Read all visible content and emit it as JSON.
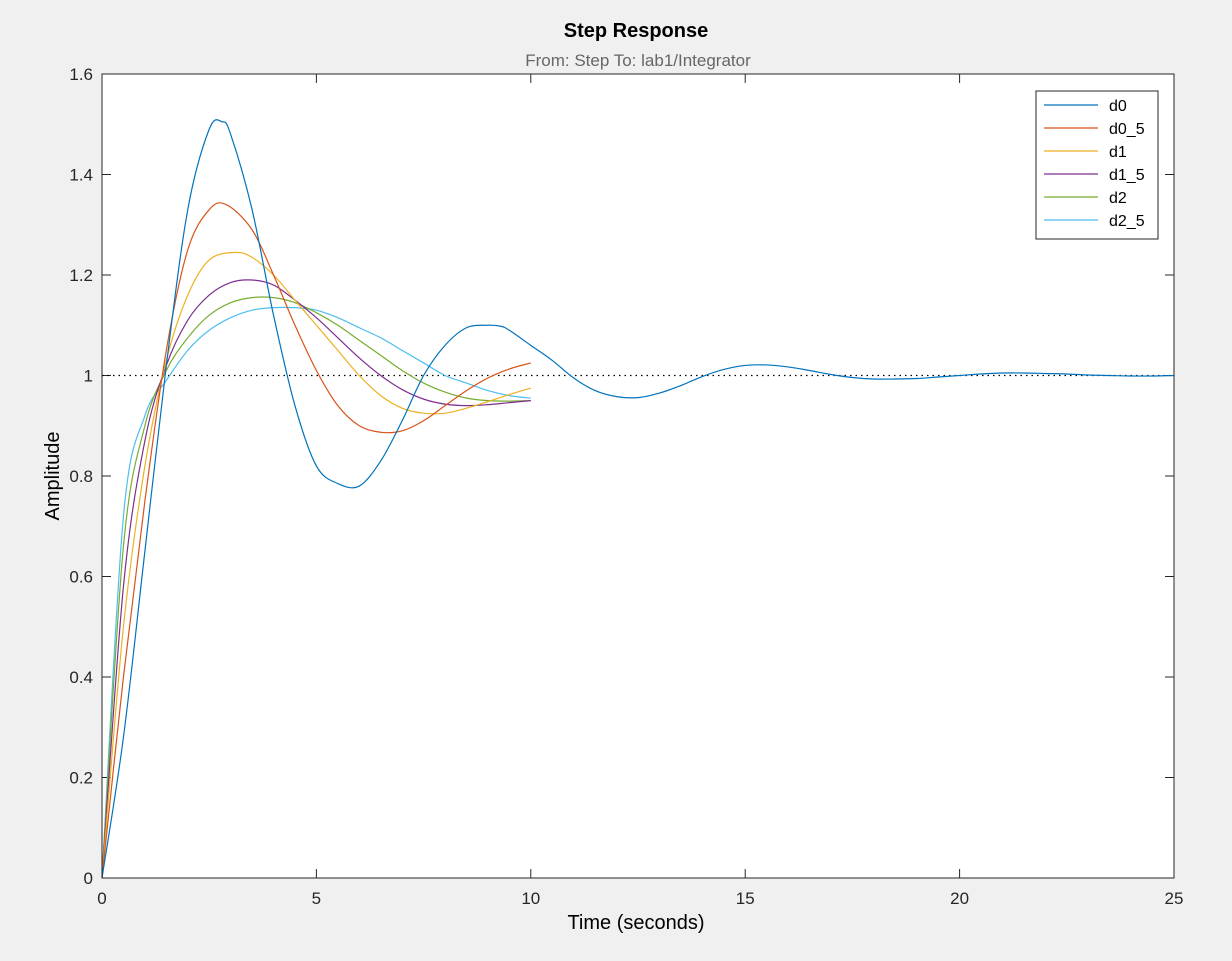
{
  "chart_data": {
    "type": "line",
    "title": "Step Response",
    "subtitle": "From: Step  To: lab1/Integrator",
    "xlabel": "Time (seconds)",
    "ylabel": "Amplitude",
    "xlim": [
      0,
      25
    ],
    "ylim": [
      0,
      1.6
    ],
    "xticks": [
      0,
      5,
      10,
      15,
      20,
      25
    ],
    "xtick_labels": [
      "0",
      "5",
      "10",
      "15",
      "20",
      "25"
    ],
    "yticks": [
      0,
      0.2,
      0.4,
      0.6,
      0.8,
      1,
      1.2,
      1.4,
      1.6
    ],
    "ytick_labels": [
      "0",
      "0.2",
      "0.4",
      "0.6",
      "0.8",
      "1",
      "1.2",
      "1.4",
      "1.6"
    ],
    "grid": false,
    "legend_position": "top-right",
    "reference_line": {
      "y": 1,
      "style": "dotted",
      "color": "#000000"
    },
    "series": [
      {
        "name": "d0",
        "color": "#0072bd",
        "x": [
          0,
          0.5,
          1,
          1.5,
          2,
          2.5,
          2.8,
          3,
          3.5,
          4,
          4.5,
          5,
          5.5,
          6,
          6.5,
          7,
          7.5,
          8,
          8.5,
          9,
          9.3,
          9.5,
          10,
          10.5,
          11,
          11.5,
          12,
          12.5,
          13,
          13.5,
          14,
          14.5,
          15,
          15.5,
          16,
          16.5,
          17,
          17.5,
          18,
          18.5,
          19,
          19.5,
          20,
          20.5,
          21,
          21.5,
          22,
          22.5,
          23,
          23.5,
          24,
          24.5,
          25
        ],
        "y": [
          0,
          0.28,
          0.65,
          1.02,
          1.33,
          1.49,
          1.505,
          1.48,
          1.33,
          1.12,
          0.94,
          0.82,
          0.785,
          0.78,
          0.83,
          0.91,
          1.0,
          1.06,
          1.095,
          1.1,
          1.098,
          1.09,
          1.06,
          1.03,
          0.995,
          0.97,
          0.958,
          0.956,
          0.965,
          0.98,
          0.998,
          1.012,
          1.02,
          1.021,
          1.017,
          1.01,
          1.002,
          0.996,
          0.993,
          0.993,
          0.994,
          0.997,
          1.0,
          1.003,
          1.005,
          1.005,
          1.004,
          1.003,
          1.001,
          1.0,
          0.999,
          0.999,
          1.0
        ]
      },
      {
        "name": "d0_5",
        "color": "#d95319",
        "x": [
          0,
          0.5,
          1,
          1.5,
          2,
          2.5,
          2.9,
          3.5,
          4,
          4.5,
          5,
          5.5,
          6,
          6.5,
          7,
          7.5,
          8,
          8.5,
          9,
          9.5,
          10
        ],
        "y": [
          0,
          0.4,
          0.75,
          1.05,
          1.25,
          1.33,
          1.34,
          1.29,
          1.2,
          1.1,
          1.01,
          0.94,
          0.9,
          0.887,
          0.89,
          0.91,
          0.94,
          0.97,
          0.995,
          1.013,
          1.025
        ]
      },
      {
        "name": "d1",
        "color": "#edb120",
        "x": [
          0,
          0.5,
          1,
          1.5,
          2,
          2.5,
          3.1,
          3.5,
          4,
          4.5,
          5,
          5.5,
          6,
          6.5,
          7,
          7.5,
          8,
          8.5,
          9,
          9.5,
          10
        ],
        "y": [
          0,
          0.5,
          0.82,
          1.03,
          1.16,
          1.23,
          1.245,
          1.235,
          1.2,
          1.15,
          1.1,
          1.05,
          1.0,
          0.96,
          0.935,
          0.925,
          0.925,
          0.935,
          0.948,
          0.962,
          0.975
        ]
      },
      {
        "name": "d1_5",
        "color": "#7e2f8e",
        "x": [
          0,
          0.5,
          1,
          1.5,
          2,
          2.5,
          3,
          3.5,
          4,
          4.5,
          5,
          5.5,
          6,
          6.5,
          7,
          7.5,
          8,
          8.5,
          9,
          9.5,
          10
        ],
        "y": [
          0,
          0.58,
          0.87,
          1.02,
          1.11,
          1.16,
          1.185,
          1.19,
          1.18,
          1.15,
          1.115,
          1.075,
          1.035,
          1.0,
          0.972,
          0.953,
          0.943,
          0.94,
          0.942,
          0.946,
          0.95
        ]
      },
      {
        "name": "d2",
        "color": "#77ac30",
        "x": [
          0,
          0.5,
          1,
          1.5,
          2,
          2.5,
          3,
          3.5,
          4,
          4.5,
          5,
          5.5,
          6,
          6.5,
          7,
          7.5,
          8,
          8.5,
          9,
          9.5,
          10
        ],
        "y": [
          0,
          0.66,
          0.9,
          1.01,
          1.075,
          1.12,
          1.145,
          1.155,
          1.155,
          1.145,
          1.125,
          1.1,
          1.07,
          1.04,
          1.01,
          0.985,
          0.967,
          0.955,
          0.95,
          0.949,
          0.95
        ]
      },
      {
        "name": "d2_5",
        "color": "#4dbeee",
        "x": [
          0,
          0.5,
          1,
          1.5,
          2,
          2.5,
          3,
          3.5,
          4,
          4.5,
          5,
          5.5,
          6,
          6.5,
          7,
          7.5,
          8,
          8.5,
          9,
          9.5,
          10
        ],
        "y": [
          0,
          0.72,
          0.92,
          0.99,
          1.05,
          1.09,
          1.115,
          1.13,
          1.135,
          1.135,
          1.13,
          1.115,
          1.095,
          1.075,
          1.05,
          1.025,
          1.0,
          0.985,
          0.97,
          0.96,
          0.955
        ]
      }
    ]
  }
}
